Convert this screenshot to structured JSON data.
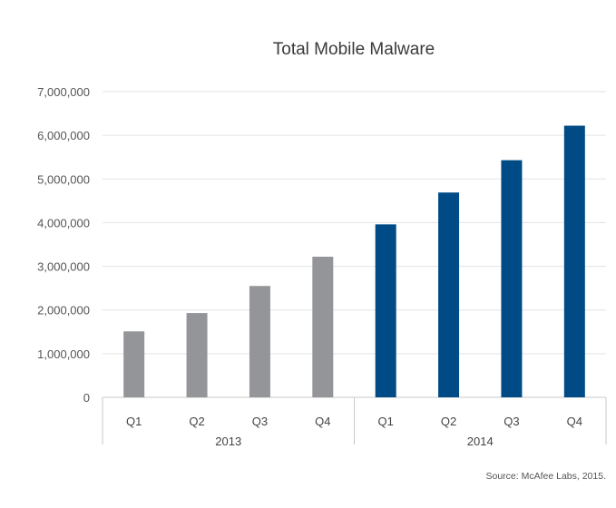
{
  "chart_data": {
    "type": "bar",
    "title": "Total Mobile Malware",
    "source": "Source: McAfee Labs, 2015.",
    "ylim": [
      0,
      7000000
    ],
    "yticks": [
      0,
      1000000,
      2000000,
      3000000,
      4000000,
      5000000,
      6000000,
      7000000
    ],
    "ytick_labels": [
      "0",
      "1,000,000",
      "2,000,000",
      "3,000,000",
      "4,000,000",
      "5,000,000",
      "6,000,000",
      "7,000,000"
    ],
    "grid": true,
    "categories": [
      "Q1",
      "Q2",
      "Q3",
      "Q4",
      "Q1",
      "Q2",
      "Q3",
      "Q4"
    ],
    "groups": [
      {
        "label": "2013",
        "color": "#939598"
      },
      {
        "label": "2014",
        "color": "#004b85"
      }
    ],
    "category_group": [
      0,
      0,
      0,
      0,
      1,
      1,
      1,
      1
    ],
    "values": [
      1510000,
      1930000,
      2550000,
      3220000,
      3960000,
      4690000,
      5430000,
      6220000
    ]
  }
}
